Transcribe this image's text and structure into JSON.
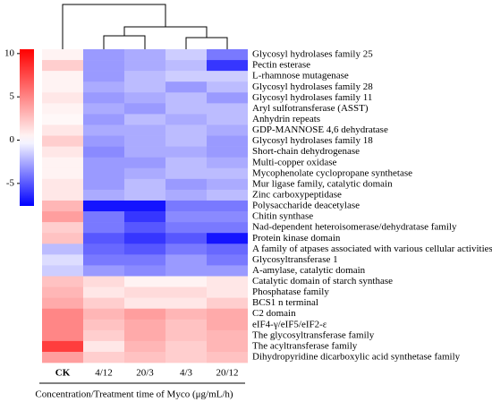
{
  "chart_data": {
    "type": "heatmap",
    "x_label": "Concentration/Treatment time of Myco (μg/mL/h)",
    "x": [
      "CK",
      "4/12",
      "20/3",
      "4/3",
      "20/12"
    ],
    "y": [
      "Glycosyl hydrolases family 25",
      "Pectin esterase",
      "L-rhamnose mutagenase",
      "Glycosyl hydrolases family 28",
      "Glycosyl hydrolases family 11",
      "Aryl sulfotransferase (ASST)",
      "Anhydrin repeats",
      "GDP-MANNOSE 4,6 dehydratase",
      "Glycosyl hydrolases family 18",
      "Short-chain dehydrogenase",
      "Multi-copper oxidase",
      "Mycophenolate cyclopropane synthetase",
      "Mur ligase family, catalytic domain",
      "Zinc carboxypeptidase",
      "Polysaccharide deacetylase",
      "Chitin synthase",
      "Nad-dependent heteroisomerase/dehydratase family",
      "Protein kinase domain",
      "A family of atpases associated with various cellular activities (AAA)",
      "Glycosyltransferase 1",
      "A-amylase, catalytic domain",
      "Catalytic domain of starch synthase",
      "Phosphatase family",
      "BCS1 n terminal",
      "C2 domain",
      "eIF4-γ/eIF5/eIF2-ε",
      "The glycosyltransferase family",
      "The acyltransferase family",
      "Dihydropyridine dicarboxylic acid synthetase family"
    ],
    "values": [
      [
        0.5,
        -3,
        -2.5,
        -1.5,
        -4
      ],
      [
        2,
        -3,
        -2.5,
        -2,
        -6
      ],
      [
        0.5,
        -3,
        -2,
        -1.5,
        -1.5
      ],
      [
        0.5,
        -2.5,
        -2,
        -3,
        -2
      ],
      [
        1,
        -3,
        -2.5,
        -2,
        -3
      ],
      [
        0.5,
        -2.5,
        -3,
        -2,
        -2
      ],
      [
        0.3,
        -3,
        -2,
        -2.5,
        -2
      ],
      [
        1,
        -2.5,
        -2.5,
        -2,
        -2.5
      ],
      [
        2,
        -3,
        -2.5,
        -2,
        -3
      ],
      [
        1,
        -3.5,
        -2.5,
        -2.5,
        -3
      ],
      [
        0.5,
        -3,
        -3,
        -2,
        -2.5
      ],
      [
        0.5,
        -3,
        -2.5,
        -2,
        -2
      ],
      [
        1,
        -3,
        -2,
        -3,
        -2.5
      ],
      [
        1,
        -2.5,
        -2,
        -2.5,
        -2
      ],
      [
        3,
        -7,
        -7,
        -4,
        -4
      ],
      [
        4,
        -4,
        -6,
        -3.5,
        -3.5
      ],
      [
        2,
        -4,
        -5,
        -4,
        -4
      ],
      [
        2.5,
        -5,
        -6,
        -5,
        -7
      ],
      [
        -2,
        -4.5,
        -5,
        -4,
        -4.5
      ],
      [
        -1,
        -4,
        -4,
        -3,
        -4
      ],
      [
        -1.5,
        -3,
        -3.5,
        -3,
        -3
      ],
      [
        2.5,
        1.5,
        0.5,
        0.5,
        1
      ],
      [
        3,
        1,
        1.5,
        1.5,
        1
      ],
      [
        3.5,
        2,
        1,
        1,
        2
      ],
      [
        5,
        3,
        4,
        3,
        3.5
      ],
      [
        5,
        2.5,
        3.5,
        2.5,
        3.5
      ],
      [
        5,
        2,
        3.5,
        2.5,
        3
      ],
      [
        8,
        1,
        3,
        2,
        3
      ],
      [
        4,
        2,
        2.5,
        2,
        2.5
      ]
    ],
    "zlim": [
      -7.6,
      10.5
    ],
    "zticks": [
      10,
      5,
      0,
      -5
    ]
  }
}
